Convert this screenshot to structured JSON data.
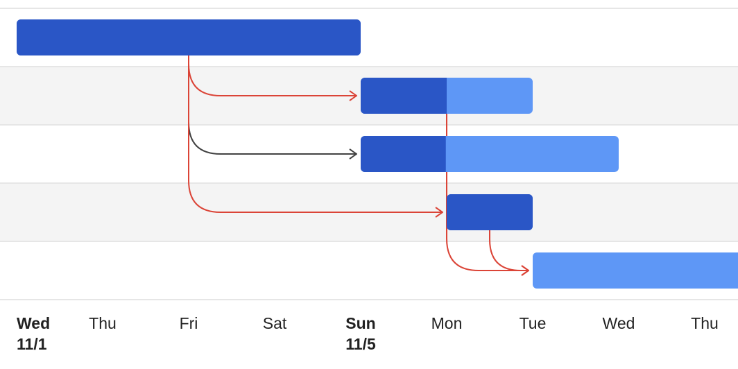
{
  "chart_data": {
    "type": "gantt",
    "axis_days": [
      {
        "day": "Wed",
        "date": "11/1"
      },
      {
        "day": "Thu",
        "date": ""
      },
      {
        "day": "Fri",
        "date": ""
      },
      {
        "day": "Sat",
        "date": ""
      },
      {
        "day": "Sun",
        "date": "11/5"
      },
      {
        "day": "Mon",
        "date": ""
      },
      {
        "day": "Tue",
        "date": ""
      },
      {
        "day": "Wed",
        "date": ""
      },
      {
        "day": "Thu",
        "date": ""
      }
    ],
    "tasks": [
      {
        "start_day": 0,
        "duration_days": 4,
        "percent_complete": 100
      },
      {
        "start_day": 4,
        "duration_days": 2,
        "percent_complete": 50
      },
      {
        "start_day": 4,
        "duration_days": 3,
        "percent_complete": 33
      },
      {
        "start_day": 5,
        "duration_days": 1,
        "percent_complete": 100
      },
      {
        "start_day": 6,
        "duration_days": 3,
        "percent_complete": 0
      }
    ],
    "dependencies": [
      {
        "from": 0,
        "to": 1,
        "critical": true
      },
      {
        "from": 0,
        "to": 2,
        "critical": false
      },
      {
        "from": 0,
        "to": 3,
        "critical": true
      },
      {
        "from": 1,
        "to": 4,
        "critical": true
      },
      {
        "from": 3,
        "to": 4,
        "critical": true
      }
    ],
    "colors": {
      "completed": "#2a56c6",
      "remaining": "#5e97f6",
      "critical_path": "#db4437",
      "arrow": "#424242",
      "row_alt": "#f4f4f4",
      "row_line": "#e6e6e6"
    }
  }
}
